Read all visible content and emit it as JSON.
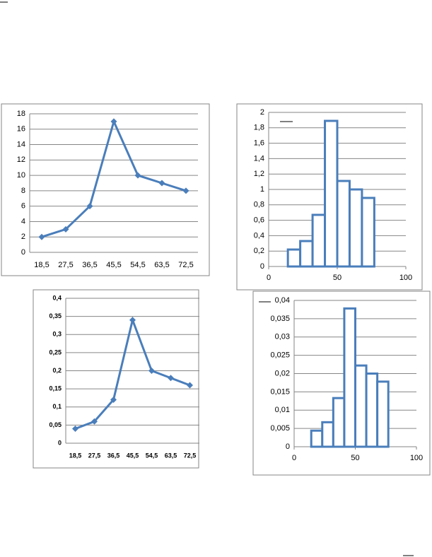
{
  "chart_data": [
    {
      "type": "line",
      "categories": [
        "18,5",
        "27,5",
        "36,5",
        "45,5",
        "54,5",
        "63,5",
        "72,5"
      ],
      "values": [
        2,
        3,
        6,
        17,
        10,
        9,
        8
      ],
      "color": "#4a7ebb",
      "ylim": [
        0,
        18
      ],
      "yticks": [
        0,
        2,
        4,
        6,
        8,
        10,
        12,
        14,
        16,
        18
      ],
      "grid": true
    },
    {
      "type": "histogram",
      "bins": [
        14,
        23,
        32,
        41,
        50,
        59,
        68,
        77
      ],
      "values": [
        0.22,
        0.33,
        0.67,
        1.89,
        1.11,
        1,
        0.89
      ],
      "color": "#4a7ebb",
      "xlim": [
        0,
        100
      ],
      "xticks": [
        0,
        50,
        100
      ],
      "ylim": [
        0,
        2
      ],
      "yticks": [
        0,
        {
          "value": 0.2,
          "label": "0,2"
        },
        {
          "value": 0.4,
          "label": "0,4"
        },
        {
          "value": 0.6,
          "label": "0,6"
        },
        {
          "value": 0.8,
          "label": "0,8"
        },
        1,
        {
          "value": 1.2,
          "label": "1,2"
        },
        {
          "value": 1.4,
          "label": "1,4"
        },
        {
          "value": 1.6,
          "label": "1,6"
        },
        {
          "value": 1.8,
          "label": "1,8"
        },
        2
      ],
      "grid": true
    },
    {
      "type": "line",
      "categories": [
        "18,5",
        "27,5",
        "36,5",
        "45,5",
        "54,5",
        "63,5",
        "72,5"
      ],
      "values": [
        0.04,
        0.06,
        0.12,
        0.34,
        0.2,
        0.18,
        0.16
      ],
      "color": "#4a7ebb",
      "ylim": [
        0,
        0.4
      ],
      "yticks": [
        0,
        {
          "value": 0.05,
          "label": "0,05"
        },
        {
          "value": 0.1,
          "label": "0,1"
        },
        {
          "value": 0.15,
          "label": "0,15"
        },
        {
          "value": 0.2,
          "label": "0,2"
        },
        {
          "value": 0.25,
          "label": "0,25"
        },
        {
          "value": 0.3,
          "label": "0,3"
        },
        {
          "value": 0.35,
          "label": "0,35"
        },
        {
          "value": 0.4,
          "label": "0,4"
        }
      ],
      "grid": true
    },
    {
      "type": "histogram",
      "bins": [
        14,
        23,
        32,
        41,
        50,
        59,
        68,
        77
      ],
      "values": [
        0.0044,
        0.0067,
        0.0133,
        0.0378,
        0.0222,
        0.02,
        0.0178
      ],
      "color": "#4a7ebb",
      "xlim": [
        0,
        100
      ],
      "xticks": [
        0,
        50,
        100
      ],
      "ylim": [
        0,
        0.04
      ],
      "yticks": [
        0,
        {
          "value": 0.005,
          "label": "0,005"
        },
        {
          "value": 0.01,
          "label": "0,01"
        },
        {
          "value": 0.015,
          "label": "0,015"
        },
        {
          "value": 0.02,
          "label": "0,02"
        },
        {
          "value": 0.025,
          "label": "0,025"
        },
        {
          "value": 0.03,
          "label": "0,03"
        },
        {
          "value": 0.035,
          "label": "0,035"
        },
        {
          "value": 0.04,
          "label": "0,04"
        }
      ],
      "grid": true
    }
  ]
}
